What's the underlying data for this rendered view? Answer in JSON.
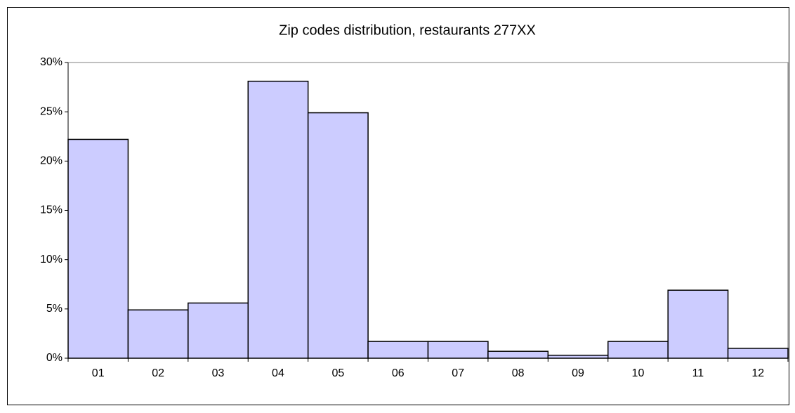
{
  "chart_data": {
    "type": "bar",
    "title": "Zip codes distribution, restaurants 277XX",
    "categories": [
      "01",
      "02",
      "03",
      "04",
      "05",
      "06",
      "07",
      "08",
      "09",
      "10",
      "11",
      "12"
    ],
    "values": [
      22.2,
      4.9,
      5.6,
      28.1,
      24.9,
      1.7,
      1.7,
      0.7,
      0.3,
      1.7,
      6.9,
      1.0
    ],
    "color": "#ccccff",
    "ylim": [
      0,
      30
    ],
    "yticks": [
      {
        "value": 0,
        "label": "0%"
      },
      {
        "value": 5,
        "label": "5%"
      },
      {
        "value": 10,
        "label": "10%"
      },
      {
        "value": 15,
        "label": "15%"
      },
      {
        "value": 20,
        "label": "20%"
      },
      {
        "value": 25,
        "label": "25%"
      },
      {
        "value": 30,
        "label": "30%"
      }
    ],
    "grid": false
  }
}
